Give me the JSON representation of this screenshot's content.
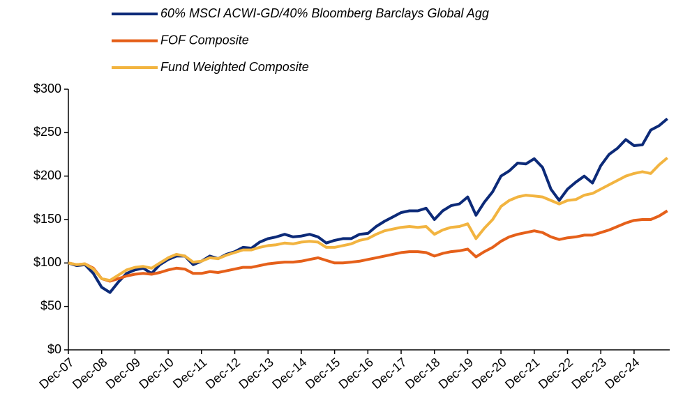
{
  "chart_data": {
    "type": "line",
    "categories": [
      "Dec-07",
      null,
      null,
      null,
      "Dec-08",
      null,
      null,
      null,
      "Dec-09",
      null,
      null,
      null,
      "Dec-10",
      null,
      null,
      null,
      "Dec-11",
      null,
      null,
      null,
      "Dec-12",
      null,
      null,
      null,
      "Dec-13",
      null,
      null,
      null,
      "Dec-14",
      null,
      null,
      null,
      "Dec-15",
      null,
      null,
      null,
      "Dec-16",
      null,
      null,
      null,
      "Dec-17",
      null,
      null,
      null,
      "Dec-18",
      null,
      null,
      null,
      "Dec-19",
      null,
      null,
      null,
      "Dec-20",
      null,
      null,
      null,
      "Dec-21",
      null,
      null,
      null,
      "Dec-22",
      null,
      null,
      null,
      "Dec-23",
      null,
      null,
      null,
      "Dec-24",
      null,
      null,
      null,
      null
    ],
    "series": [
      {
        "name": "60% MSCI ACWI-GD/40% Bloomberg Barclays Global Agg",
        "color": "#0c2a78",
        "values": [
          100,
          97,
          98,
          88,
          72,
          66,
          78,
          88,
          92,
          94,
          88,
          98,
          104,
          108,
          108,
          98,
          102,
          108,
          105,
          110,
          113,
          118,
          117,
          124,
          128,
          130,
          133,
          130,
          131,
          133,
          130,
          123,
          126,
          128,
          128,
          133,
          134,
          142,
          148,
          153,
          158,
          160,
          160,
          163,
          150,
          160,
          166,
          168,
          176,
          155,
          170,
          182,
          200,
          206,
          215,
          214,
          220,
          210,
          185,
          172,
          185,
          193,
          200,
          192,
          212,
          225,
          232,
          242,
          235,
          236,
          253,
          258,
          266
        ]
      },
      {
        "name": "FOF Composite",
        "color": "#e5601a",
        "values": [
          100,
          98,
          99,
          94,
          82,
          79,
          82,
          85,
          87,
          88,
          87,
          89,
          92,
          94,
          93,
          88,
          88,
          90,
          89,
          91,
          93,
          95,
          95,
          97,
          99,
          100,
          101,
          101,
          102,
          104,
          106,
          103,
          100,
          100,
          101,
          102,
          104,
          106,
          108,
          110,
          112,
          113,
          113,
          112,
          108,
          111,
          113,
          114,
          116,
          107,
          113,
          118,
          125,
          130,
          133,
          135,
          137,
          135,
          130,
          127,
          129,
          130,
          132,
          132,
          135,
          138,
          142,
          146,
          149,
          150,
          150,
          154,
          160
        ]
      },
      {
        "name": "Fund Weighted Composite",
        "color": "#f2b440",
        "values": [
          100,
          98,
          99,
          93,
          82,
          80,
          86,
          92,
          95,
          96,
          94,
          100,
          106,
          110,
          108,
          101,
          102,
          106,
          105,
          109,
          112,
          115,
          115,
          118,
          120,
          121,
          123,
          122,
          124,
          125,
          124,
          118,
          118,
          120,
          122,
          126,
          128,
          133,
          137,
          139,
          141,
          142,
          141,
          142,
          133,
          138,
          141,
          142,
          145,
          128,
          140,
          150,
          165,
          172,
          176,
          178,
          177,
          176,
          172,
          168,
          172,
          173,
          178,
          180,
          185,
          190,
          195,
          200,
          203,
          205,
          203,
          213,
          221
        ]
      }
    ],
    "ylim": [
      0,
      300
    ],
    "yticks": [
      {
        "value": 0,
        "label": "$0"
      },
      {
        "value": 50,
        "label": "$50"
      },
      {
        "value": 100,
        "label": "$100"
      },
      {
        "value": 150,
        "label": "$150"
      },
      {
        "value": 200,
        "label": "$200"
      },
      {
        "value": 250,
        "label": "$250"
      },
      {
        "value": 300,
        "label": "$300"
      }
    ],
    "legend": "top"
  }
}
